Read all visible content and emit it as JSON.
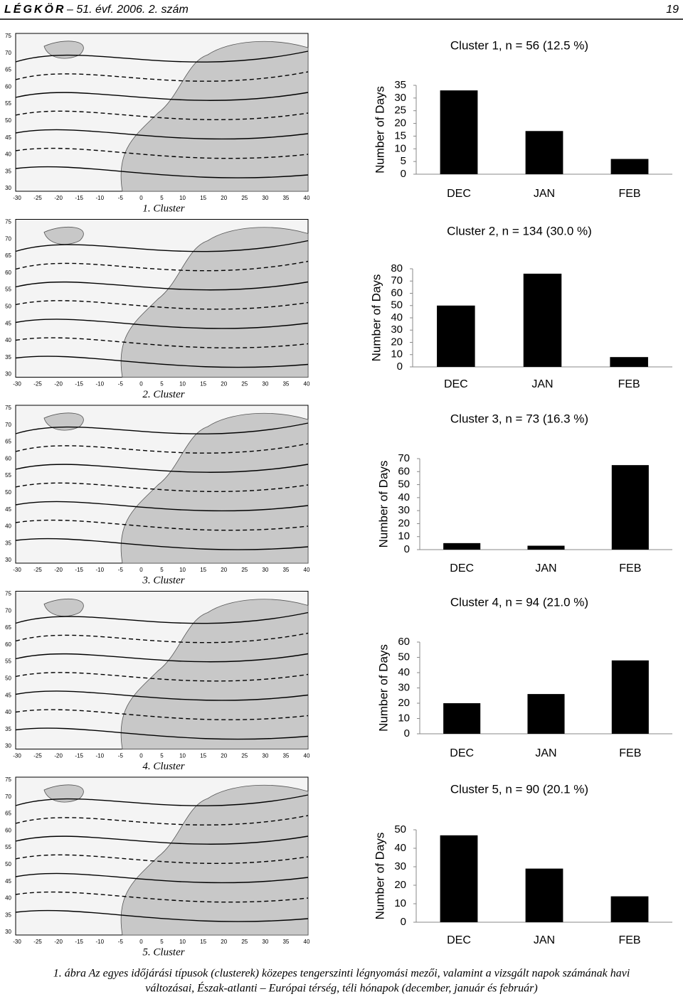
{
  "header": {
    "journal": "LÉGKÖR",
    "issue": "– 51. évf. 2006. 2. szám",
    "page": "19"
  },
  "map_axes": {
    "lat": [
      75,
      70,
      65,
      60,
      55,
      50,
      45,
      40,
      35,
      30
    ],
    "lon": [
      -30,
      -25,
      -20,
      -15,
      -10,
      -5,
      0,
      5,
      10,
      15,
      20,
      25,
      30,
      35,
      40
    ]
  },
  "maps": [
    {
      "caption": "1. Cluster"
    },
    {
      "caption": "2. Cluster"
    },
    {
      "caption": "3. Cluster"
    },
    {
      "caption": "4. Cluster"
    },
    {
      "caption": "5. Cluster"
    }
  ],
  "charts": [
    {
      "type": "bar",
      "title": "Cluster 1,  n = 56  (12.5 %)",
      "ylabel": "Number of Days",
      "categories": [
        "DEC",
        "JAN",
        "FEB"
      ],
      "values": [
        33,
        17,
        6
      ],
      "color": "#000000",
      "ylim": [
        0,
        35
      ],
      "yticks": [
        0,
        5,
        10,
        15,
        20,
        25,
        30,
        35
      ]
    },
    {
      "type": "bar",
      "title": "Cluster 2,  n = 134  (30.0 %)",
      "ylabel": "Number of Days",
      "categories": [
        "DEC",
        "JAN",
        "FEB"
      ],
      "values": [
        50,
        76,
        8
      ],
      "color": "#000000",
      "ylim": [
        0,
        80
      ],
      "yticks": [
        0,
        10,
        20,
        30,
        40,
        50,
        60,
        70,
        80
      ]
    },
    {
      "type": "bar",
      "title": "Cluster 3,  n = 73 (16.3 %)",
      "ylabel": "Number of Days",
      "categories": [
        "DEC",
        "JAN",
        "FEB"
      ],
      "values": [
        5,
        3,
        65
      ],
      "color": "#000000",
      "ylim": [
        0,
        70
      ],
      "yticks": [
        0,
        10,
        20,
        30,
        40,
        50,
        60,
        70
      ]
    },
    {
      "type": "bar",
      "title": "Cluster 4,  n = 94  (21.0 %)",
      "ylabel": "Number of Days",
      "categories": [
        "DEC",
        "JAN",
        "FEB"
      ],
      "values": [
        20,
        26,
        48
      ],
      "color": "#000000",
      "ylim": [
        0,
        60
      ],
      "yticks": [
        0,
        10,
        20,
        30,
        40,
        50,
        60
      ]
    },
    {
      "type": "bar",
      "title": "Cluster 5,  n = 90  (20.1 %)",
      "ylabel": "Number of Days",
      "categories": [
        "DEC",
        "JAN",
        "FEB"
      ],
      "values": [
        47,
        29,
        14
      ],
      "color": "#000000",
      "ylim": [
        0,
        50
      ],
      "yticks": [
        0,
        10,
        20,
        30,
        40,
        50
      ]
    }
  ],
  "caption": {
    "lines": [
      "1. ábra Az egyes időjárási típusok (clusterek) közepes tengerszinti légnyomási mezői, valamint a vizsgált napok számának havi",
      "változásai, Észak-atlanti – Európai térség, téli hónapok (december, január és február)"
    ]
  }
}
